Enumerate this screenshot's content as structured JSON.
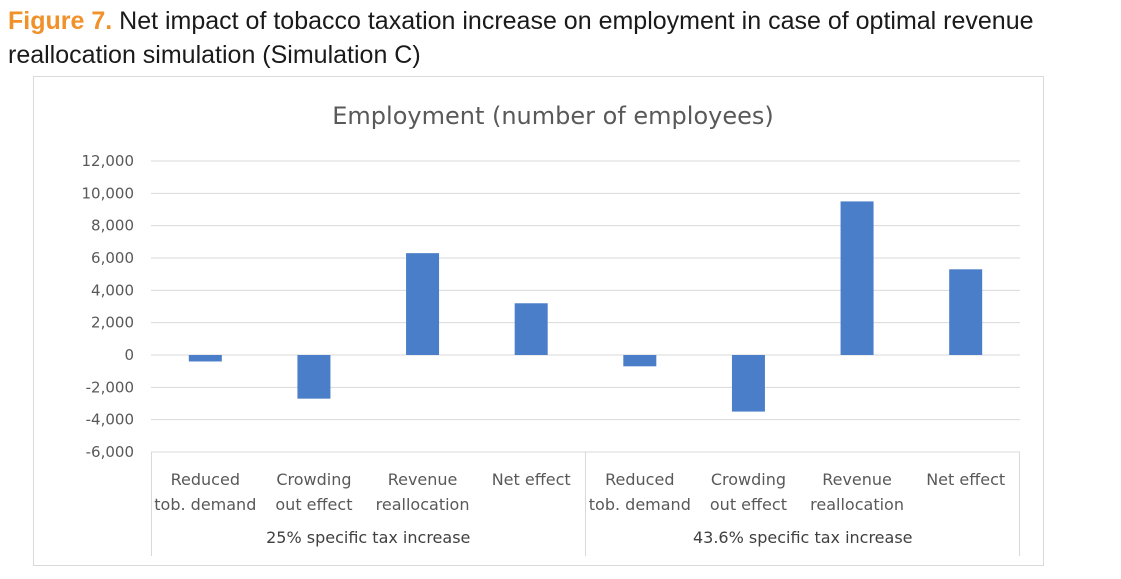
{
  "caption": {
    "label": "Figure 7.",
    "text": " Net impact of tobacco taxation increase on employment in case of optimal revenue reallocation simulation (Simulation C)"
  },
  "chart_data": {
    "type": "bar",
    "title": "Employment (number of employees)",
    "xlabel": "",
    "ylabel": "",
    "ylim": [
      -6000,
      12000
    ],
    "yticks": [
      12000,
      10000,
      8000,
      6000,
      4000,
      2000,
      0,
      -2000,
      -4000,
      -6000
    ],
    "ytick_labels": [
      "12,000",
      "10,000",
      "8,000",
      "6,000",
      "4,000",
      "2,000",
      "0",
      "-2,000",
      "-4,000",
      "-6,000"
    ],
    "grid": true,
    "bar_color": "#4a7ec8",
    "groups": [
      {
        "label": "25% specific tax increase",
        "size": 4
      },
      {
        "label": "43.6% specific tax increase",
        "size": 4
      }
    ],
    "categories": [
      [
        "Reduced",
        "tob. demand"
      ],
      [
        "Crowding",
        "out effect"
      ],
      [
        "Revenue",
        "reallocation"
      ],
      [
        "Net effect"
      ],
      [
        "Reduced",
        "tob. demand"
      ],
      [
        "Crowding",
        "out effect"
      ],
      [
        "Revenue",
        "reallocation"
      ],
      [
        "Net effect"
      ]
    ],
    "values": [
      -400,
      -2700,
      6300,
      3200,
      -700,
      -3500,
      9500,
      5300
    ]
  }
}
